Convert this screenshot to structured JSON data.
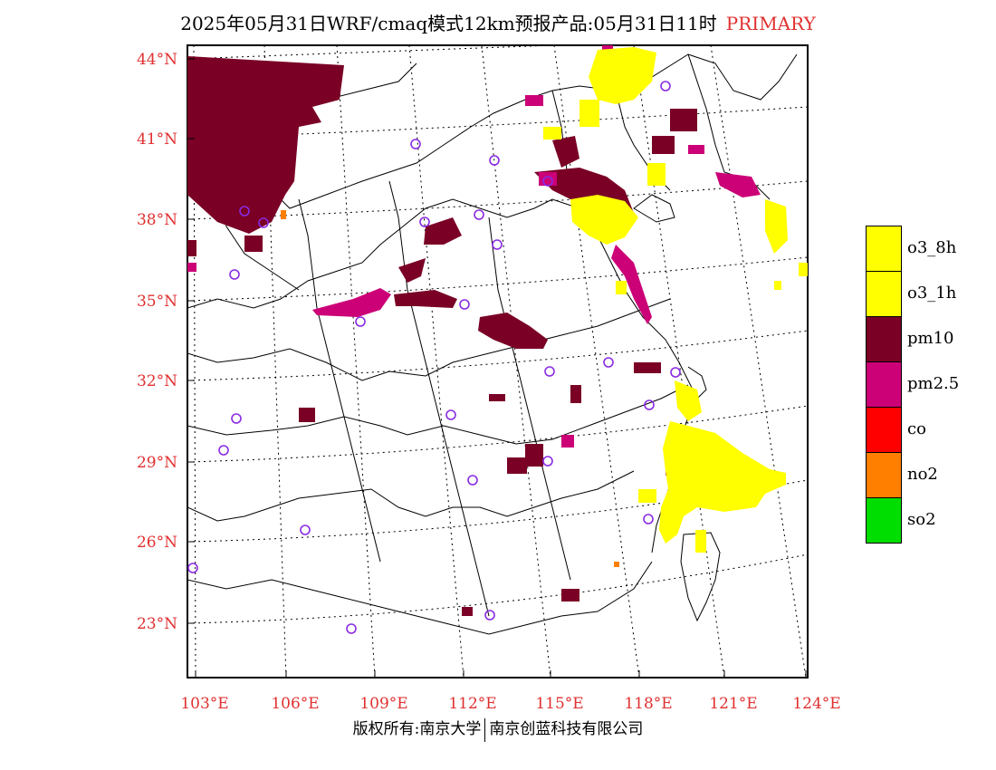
{
  "title": {
    "main": "2025年05月31日WRF/cmaq模式12km预报产品:05月31日11时",
    "tag": "PRIMARY"
  },
  "axes": {
    "lat_labels": [
      "44°N",
      "41°N",
      "38°N",
      "35°N",
      "32°N",
      "29°N",
      "26°N",
      "23°N"
    ],
    "lon_labels": [
      "103°E",
      "106°E",
      "109°E",
      "112°E",
      "115°E",
      "118°E",
      "121°E",
      "124°E"
    ]
  },
  "legend": [
    {
      "label": "o3_8h",
      "color": "#ffff00"
    },
    {
      "label": "o3_1h",
      "color": "#ffff00"
    },
    {
      "label": "pm10",
      "color": "#7a0026"
    },
    {
      "label": "pm2.5",
      "color": "#cc0077"
    },
    {
      "label": "co",
      "color": "#ff0000"
    },
    {
      "label": "no2",
      "color": "#ff7f00"
    },
    {
      "label": "so2",
      "color": "#00dd00"
    }
  ],
  "colors": {
    "pm10": "#7a0026",
    "pm25": "#cc0077",
    "o3": "#ffff00",
    "no2": "#ff7f00",
    "station": "#8a2be2",
    "label_red": "#e03030"
  },
  "footer": {
    "left": "版权所有:南京大学",
    "right": "南京创蓝科技有限公司"
  }
}
